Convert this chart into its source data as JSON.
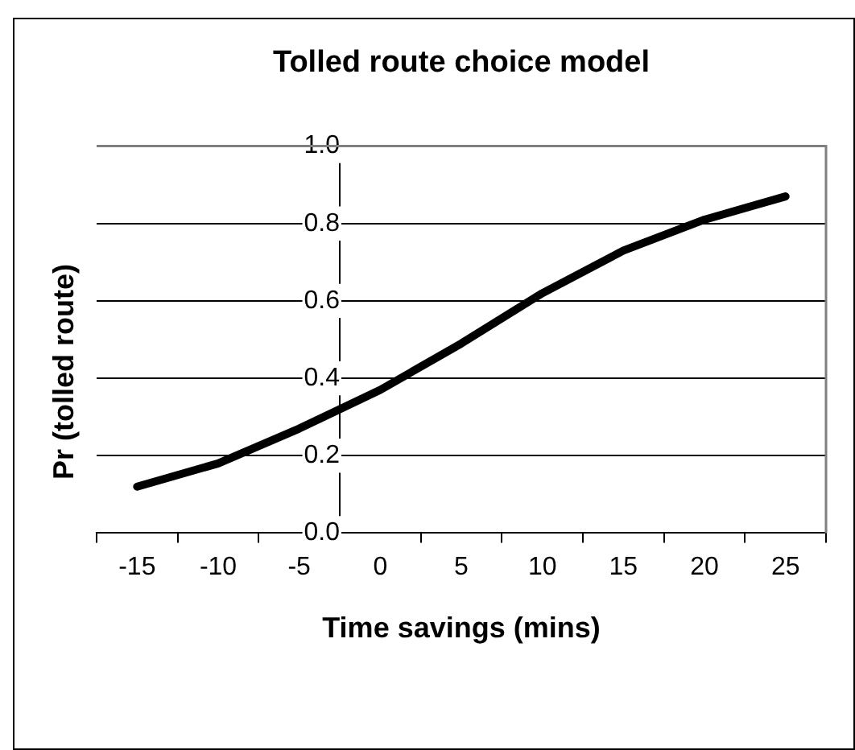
{
  "chart_data": {
    "type": "line",
    "title": "Tolled route choice model",
    "xlabel": "Time savings (mins)",
    "ylabel": "Pr (tolled route)",
    "categories": [
      "-15",
      "-10",
      "-5",
      "0",
      "5",
      "10",
      "15",
      "20",
      "25"
    ],
    "series": [
      {
        "color": "#000000",
        "values": [
          0.12,
          0.18,
          0.27,
          0.37,
          0.49,
          0.62,
          0.73,
          0.81,
          0.87
        ]
      }
    ],
    "ylim": [
      0,
      1
    ],
    "yticks": [
      {
        "value": 0,
        "label": "0.0"
      },
      {
        "value": 0.2,
        "label": "0.2"
      },
      {
        "value": 0.4,
        "label": "0.4"
      },
      {
        "value": 0.6,
        "label": "0.6"
      },
      {
        "value": 0.8,
        "label": "0.8"
      },
      {
        "value": 1,
        "label": "1.0"
      }
    ],
    "grid": "y",
    "legend": false,
    "marker": "none",
    "line_style": "solid"
  }
}
